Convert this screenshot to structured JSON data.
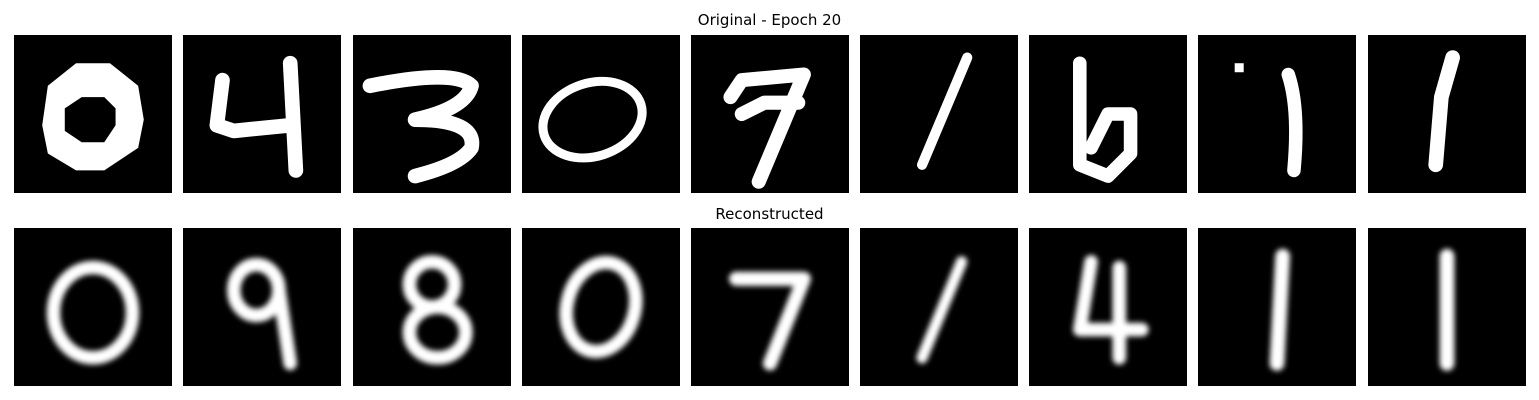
{
  "rows": {
    "original": {
      "title": "Original - Epoch 20",
      "digits": [
        "0",
        "4",
        "3",
        "0",
        "7",
        "1",
        "6",
        "1",
        "1"
      ]
    },
    "reconstructed": {
      "title": "Reconstructed",
      "digits": [
        "0",
        "9",
        "8",
        "0",
        "7",
        "1",
        "4",
        "1",
        "1"
      ]
    }
  },
  "colors": {
    "background": "#000000",
    "stroke": "#ffffff"
  }
}
